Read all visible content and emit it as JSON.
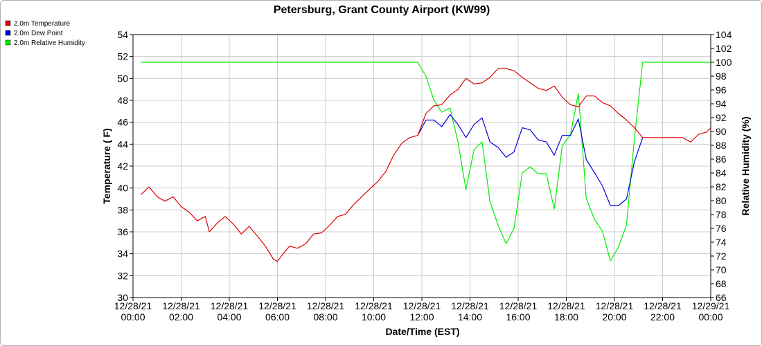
{
  "chart_data": {
    "type": "line",
    "title": "Petersburg, Grant County Airport (KW99)",
    "xlabel": "Date/Time (EST)",
    "ylabel_left": "Temperature ( F)",
    "ylabel_right": "Relative Humidity (%)",
    "ylim_left": [
      30,
      54
    ],
    "ylim_right": [
      66,
      104
    ],
    "xlim_hours": [
      0,
      24
    ],
    "grid": true,
    "legend_position": "top-left",
    "x_ticks": [
      {
        "hour": 0,
        "date": "12/28/21",
        "time": "00:00"
      },
      {
        "hour": 2,
        "date": "12/28/21",
        "time": "02:00"
      },
      {
        "hour": 4,
        "date": "12/28/21",
        "time": "04:00"
      },
      {
        "hour": 6,
        "date": "12/28/21",
        "time": "06:00"
      },
      {
        "hour": 8,
        "date": "12/28/21",
        "time": "08:00"
      },
      {
        "hour": 10,
        "date": "12/28/21",
        "time": "10:00"
      },
      {
        "hour": 12,
        "date": "12/28/21",
        "time": "12:00"
      },
      {
        "hour": 14,
        "date": "12/28/21",
        "time": "14:00"
      },
      {
        "hour": 16,
        "date": "12/28/21",
        "time": "16:00"
      },
      {
        "hour": 18,
        "date": "12/28/21",
        "time": "18:00"
      },
      {
        "hour": 20,
        "date": "12/28/21",
        "time": "20:00"
      },
      {
        "hour": 22,
        "date": "12/28/21",
        "time": "22:00"
      },
      {
        "hour": 24,
        "date": "12/29/21",
        "time": "00:00"
      }
    ],
    "left_ticks": [
      "30",
      "32",
      "34",
      "36",
      "38",
      "40",
      "42",
      "44",
      "46",
      "48",
      "50",
      "52",
      "54"
    ],
    "right_ticks": [
      "66",
      "68",
      "70",
      "72",
      "74",
      "76",
      "78",
      "80",
      "82",
      "84",
      "86",
      "88",
      "90",
      "92",
      "94",
      "96",
      "98",
      "100",
      "102",
      "104"
    ],
    "series": [
      {
        "name": "2.0m Temperature",
        "color": "#dd0000",
        "axis": "left",
        "points": [
          [
            0.33,
            39.4
          ],
          [
            0.67,
            40.1
          ],
          [
            1.0,
            39.2
          ],
          [
            1.33,
            38.8
          ],
          [
            1.67,
            39.2
          ],
          [
            2.0,
            38.3
          ],
          [
            2.33,
            37.8
          ],
          [
            2.67,
            37.0
          ],
          [
            3.0,
            37.4
          ],
          [
            3.17,
            36.0
          ],
          [
            3.5,
            36.8
          ],
          [
            3.83,
            37.4
          ],
          [
            4.17,
            36.7
          ],
          [
            4.5,
            35.8
          ],
          [
            4.83,
            36.5
          ],
          [
            5.17,
            35.6
          ],
          [
            5.5,
            34.7
          ],
          [
            5.83,
            33.5
          ],
          [
            6.0,
            33.3
          ],
          [
            6.17,
            33.8
          ],
          [
            6.5,
            34.7
          ],
          [
            6.83,
            34.5
          ],
          [
            7.17,
            34.9
          ],
          [
            7.5,
            35.8
          ],
          [
            7.83,
            35.9
          ],
          [
            8.17,
            36.6
          ],
          [
            8.5,
            37.4
          ],
          [
            8.83,
            37.6
          ],
          [
            9.17,
            38.5
          ],
          [
            9.5,
            39.2
          ],
          [
            9.83,
            39.9
          ],
          [
            10.17,
            40.6
          ],
          [
            10.5,
            41.5
          ],
          [
            10.83,
            43.0
          ],
          [
            11.17,
            44.1
          ],
          [
            11.5,
            44.6
          ],
          [
            11.83,
            44.8
          ],
          [
            12.17,
            46.8
          ],
          [
            12.5,
            47.5
          ],
          [
            12.83,
            47.6
          ],
          [
            13.17,
            48.5
          ],
          [
            13.5,
            49.0
          ],
          [
            13.83,
            50.0
          ],
          [
            14.17,
            49.5
          ],
          [
            14.5,
            49.6
          ],
          [
            14.83,
            50.1
          ],
          [
            15.17,
            50.9
          ],
          [
            15.5,
            50.9
          ],
          [
            15.83,
            50.7
          ],
          [
            16.17,
            50.1
          ],
          [
            16.5,
            49.6
          ],
          [
            16.83,
            49.1
          ],
          [
            17.17,
            48.9
          ],
          [
            17.5,
            49.3
          ],
          [
            17.83,
            48.3
          ],
          [
            18.17,
            47.6
          ],
          [
            18.5,
            47.4
          ],
          [
            18.83,
            48.4
          ],
          [
            19.17,
            48.4
          ],
          [
            19.5,
            47.8
          ],
          [
            19.83,
            47.5
          ],
          [
            20.17,
            46.8
          ],
          [
            20.5,
            46.2
          ],
          [
            20.83,
            45.5
          ],
          [
            21.17,
            44.6
          ],
          [
            21.5,
            44.6
          ],
          [
            21.83,
            44.6
          ],
          [
            22.17,
            44.6
          ],
          [
            22.5,
            44.6
          ],
          [
            22.83,
            44.6
          ],
          [
            23.17,
            44.2
          ],
          [
            23.5,
            44.9
          ],
          [
            23.83,
            45.1
          ],
          [
            24.0,
            45.5
          ]
        ]
      },
      {
        "name": "2.0m Dew Point",
        "color": "#0000dd",
        "axis": "left",
        "points": [
          [
            11.83,
            44.8
          ],
          [
            12.17,
            46.2
          ],
          [
            12.5,
            46.2
          ],
          [
            12.83,
            45.6
          ],
          [
            13.17,
            46.7
          ],
          [
            13.5,
            45.8
          ],
          [
            13.83,
            44.6
          ],
          [
            14.17,
            45.8
          ],
          [
            14.5,
            46.4
          ],
          [
            14.83,
            44.2
          ],
          [
            15.17,
            43.7
          ],
          [
            15.5,
            42.8
          ],
          [
            15.83,
            43.3
          ],
          [
            16.17,
            45.5
          ],
          [
            16.5,
            45.3
          ],
          [
            16.83,
            44.4
          ],
          [
            17.17,
            44.2
          ],
          [
            17.5,
            43.0
          ],
          [
            17.83,
            44.8
          ],
          [
            18.17,
            44.8
          ],
          [
            18.5,
            46.3
          ],
          [
            18.83,
            42.6
          ],
          [
            19.17,
            41.4
          ],
          [
            19.5,
            40.2
          ],
          [
            19.83,
            38.4
          ],
          [
            20.17,
            38.4
          ],
          [
            20.5,
            39.0
          ],
          [
            20.83,
            42.4
          ],
          [
            21.17,
            44.6
          ]
        ]
      },
      {
        "name": "2.0m Relative Humidity",
        "color": "#00ee00",
        "axis": "right",
        "points": [
          [
            0.33,
            100
          ],
          [
            11.83,
            100
          ],
          [
            12.17,
            98
          ],
          [
            12.5,
            94.5
          ],
          [
            12.83,
            92.8
          ],
          [
            13.17,
            93.4
          ],
          [
            13.5,
            88.5
          ],
          [
            13.83,
            81.6
          ],
          [
            14.17,
            87.4
          ],
          [
            14.5,
            88.5
          ],
          [
            14.83,
            79.9
          ],
          [
            15.17,
            76.4
          ],
          [
            15.5,
            73.8
          ],
          [
            15.83,
            76.0
          ],
          [
            16.17,
            84.0
          ],
          [
            16.5,
            84.9
          ],
          [
            16.83,
            83.9
          ],
          [
            17.17,
            83.9
          ],
          [
            17.5,
            78.8
          ],
          [
            17.83,
            87.9
          ],
          [
            18.17,
            89.5
          ],
          [
            18.5,
            95.5
          ],
          [
            18.83,
            80.3
          ],
          [
            19.17,
            77.3
          ],
          [
            19.5,
            75.6
          ],
          [
            19.83,
            71.3
          ],
          [
            20.17,
            73.3
          ],
          [
            20.5,
            76.5
          ],
          [
            20.83,
            88.9
          ],
          [
            21.17,
            100
          ],
          [
            24.0,
            100
          ]
        ]
      }
    ]
  }
}
